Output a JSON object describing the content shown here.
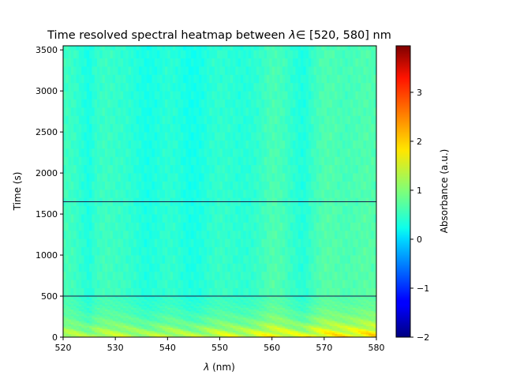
{
  "chart_data": {
    "type": "heatmap",
    "title_prefix": "Time resolved spectral heatmap between ",
    "title_lambda": "λ",
    "title_suffix": "∈ [520, 580] nm",
    "xlabel_lambda": "λ",
    "xlabel_unit": " (nm)",
    "ylabel": "Time (s)",
    "colorbar_label": "Absorbance (a.u.)",
    "xlim": [
      520,
      580
    ],
    "ylim": [
      0,
      3550
    ],
    "clim": [
      -2,
      3.95
    ],
    "colormap": "jet",
    "x_ticks": [
      520,
      530,
      540,
      550,
      560,
      570,
      580
    ],
    "y_ticks": [
      0,
      500,
      1000,
      1500,
      2000,
      2500,
      3000,
      3500
    ],
    "colorbar_ticks": [
      -2,
      -1,
      0,
      1,
      2,
      3
    ],
    "horizontal_lines": [
      {
        "time": 500,
        "color": "#1a1a4a"
      },
      {
        "time": 1650,
        "color": "#1a1a4a"
      }
    ],
    "baseline_absorbance_profile": {
      "wavelength": [
        520,
        522,
        524,
        525,
        526,
        528,
        530,
        532,
        534,
        536,
        538,
        540,
        542,
        544,
        546,
        548,
        550,
        552,
        554,
        556,
        558,
        560,
        562,
        564,
        566,
        568,
        570,
        572,
        574,
        576,
        578,
        580
      ],
      "absorbance": [
        0.55,
        0.5,
        0.38,
        0.3,
        0.45,
        0.52,
        0.48,
        0.45,
        0.38,
        0.3,
        0.35,
        0.42,
        0.38,
        0.28,
        0.3,
        0.4,
        0.45,
        0.42,
        0.38,
        0.4,
        0.48,
        0.6,
        0.55,
        0.42,
        0.32,
        0.5,
        0.62,
        0.6,
        0.55,
        0.58,
        0.62,
        0.6
      ]
    },
    "early_time_enhancement": {
      "time": [
        0,
        50,
        100,
        150,
        200,
        300,
        400,
        500
      ],
      "added_absorbance": [
        1.5,
        1.3,
        1.0,
        0.75,
        0.55,
        0.3,
        0.15,
        0.08
      ]
    }
  }
}
